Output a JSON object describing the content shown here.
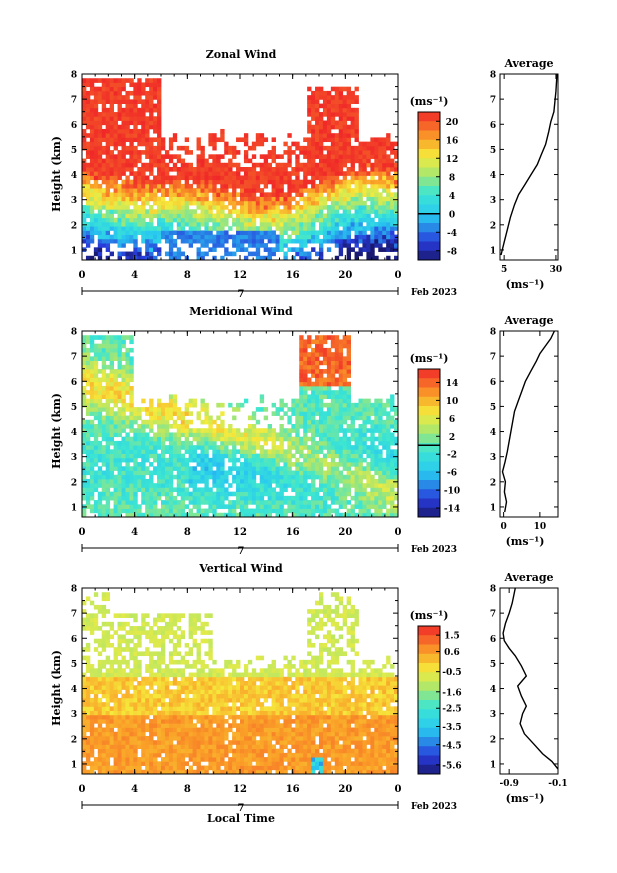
{
  "figure": {
    "xlabel_bottom": "Local Time",
    "day_label": "7",
    "date_label": "Feb 2023"
  },
  "chart_data": [
    {
      "type": "heatmap",
      "title": "Zonal Wind",
      "x": {
        "label": "",
        "range": [
          0,
          24
        ],
        "ticks": [
          "0",
          "4",
          "8",
          "12",
          "16",
          "20",
          "0"
        ]
      },
      "y": {
        "label": "Height (km)",
        "range": [
          0.6,
          8
        ],
        "ticks": [
          "1",
          "2",
          "3",
          "4",
          "5",
          "6",
          "7",
          "8"
        ]
      },
      "colorbar": {
        "unit": "(ms⁻¹)",
        "range": [
          -10,
          22
        ],
        "ticks": [
          "20",
          "16",
          "12",
          "8",
          "4",
          "0",
          "-4",
          "-8"
        ],
        "zero_line": 0
      },
      "shape": "zonal"
    },
    {
      "type": "line",
      "title": "Average",
      "xlabel": "(ms⁻¹)",
      "xlim": [
        3,
        31
      ],
      "xticks": [
        "5",
        "30"
      ],
      "ylim": [
        0.6,
        8
      ],
      "yticks": [
        "1",
        "2",
        "3",
        "4",
        "5",
        "6",
        "7",
        "8"
      ],
      "profile": {
        "x": [
          3.5,
          5,
          6.5,
          8,
          10,
          12,
          15,
          18,
          21,
          23,
          25,
          26.5,
          27.5,
          29,
          29.5,
          30,
          30.5
        ],
        "y": [
          0.8,
          1.3,
          1.8,
          2.3,
          2.8,
          3.2,
          3.6,
          4.0,
          4.4,
          4.8,
          5.2,
          5.7,
          6.1,
          6.5,
          6.9,
          7.3,
          8.0
        ]
      }
    },
    {
      "type": "heatmap",
      "title": "Meridional Wind",
      "x": {
        "label": "",
        "range": [
          0,
          24
        ],
        "ticks": [
          "0",
          "4",
          "8",
          "12",
          "16",
          "20",
          "0"
        ]
      },
      "y": {
        "label": "Height (km)",
        "range": [
          0.6,
          8
        ],
        "ticks": [
          "1",
          "2",
          "3",
          "4",
          "5",
          "6",
          "7",
          "8"
        ]
      },
      "colorbar": {
        "unit": "(ms⁻¹)",
        "range": [
          -16,
          17
        ],
        "ticks": [
          "14",
          "10",
          "6",
          "2",
          "-2",
          "-6",
          "-10",
          "-14"
        ],
        "zero_line": 0
      },
      "shape": "meridional"
    },
    {
      "type": "line",
      "title": "Average",
      "xlabel": "(ms⁻¹)",
      "xlim": [
        -1,
        15
      ],
      "xticks": [
        "0",
        "10"
      ],
      "ylim": [
        0.6,
        8
      ],
      "yticks": [
        "1",
        "2",
        "3",
        "4",
        "5",
        "6",
        "7",
        "8"
      ],
      "profile": {
        "x": [
          0.3,
          0.8,
          0.2,
          0.5,
          -0.3,
          0.4,
          1.0,
          1.5,
          2.0,
          2.5,
          3.0,
          4.0,
          5.0,
          6.0,
          7.5,
          9.0,
          10.0,
          11.5,
          13.0,
          14.0
        ],
        "y": [
          0.8,
          1.2,
          1.6,
          2.0,
          2.4,
          2.8,
          3.2,
          3.6,
          4.0,
          4.4,
          4.8,
          5.2,
          5.6,
          6.0,
          6.4,
          6.8,
          7.1,
          7.4,
          7.7,
          8.0
        ]
      }
    },
    {
      "type": "heatmap",
      "title": "Vertical Wind",
      "x": {
        "label": "Local Time",
        "range": [
          0,
          24
        ],
        "ticks": [
          "0",
          "4",
          "8",
          "12",
          "16",
          "20",
          "0"
        ]
      },
      "y": {
        "label": "Height (km)",
        "range": [
          0.6,
          8
        ],
        "ticks": [
          "1",
          "2",
          "3",
          "4",
          "5",
          "6",
          "7",
          "8"
        ]
      },
      "colorbar": {
        "unit": "(ms⁻¹)",
        "range": [
          -6.1,
          2.0
        ],
        "ticks": [
          "1.5",
          "0.6",
          "-0.5",
          "-1.6",
          "-2.5",
          "-3.5",
          "-4.5",
          "-5.6"
        ],
        "zero_line": null
      },
      "shape": "vertical"
    },
    {
      "type": "line",
      "title": "Average",
      "xlabel": "(ms⁻¹)",
      "xlim": [
        -1.05,
        -0.1
      ],
      "xticks": [
        "-0.9",
        "-0.1"
      ],
      "ylim": [
        0.6,
        8
      ],
      "yticks": [
        "1",
        "2",
        "3",
        "4",
        "5",
        "6",
        "7",
        "8"
      ],
      "profile": {
        "x": [
          -0.1,
          -0.2,
          -0.35,
          -0.5,
          -0.65,
          -0.72,
          -0.68,
          -0.62,
          -0.7,
          -0.76,
          -0.62,
          -0.7,
          -0.8,
          -0.9,
          -0.98,
          -1.0,
          -0.96,
          -0.9,
          -0.85,
          -0.8
        ],
        "y": [
          0.8,
          1.1,
          1.4,
          1.8,
          2.2,
          2.6,
          3.0,
          3.3,
          3.7,
          4.1,
          4.5,
          4.9,
          5.3,
          5.6,
          5.9,
          6.2,
          6.6,
          7.0,
          7.4,
          8.0
        ]
      }
    }
  ]
}
